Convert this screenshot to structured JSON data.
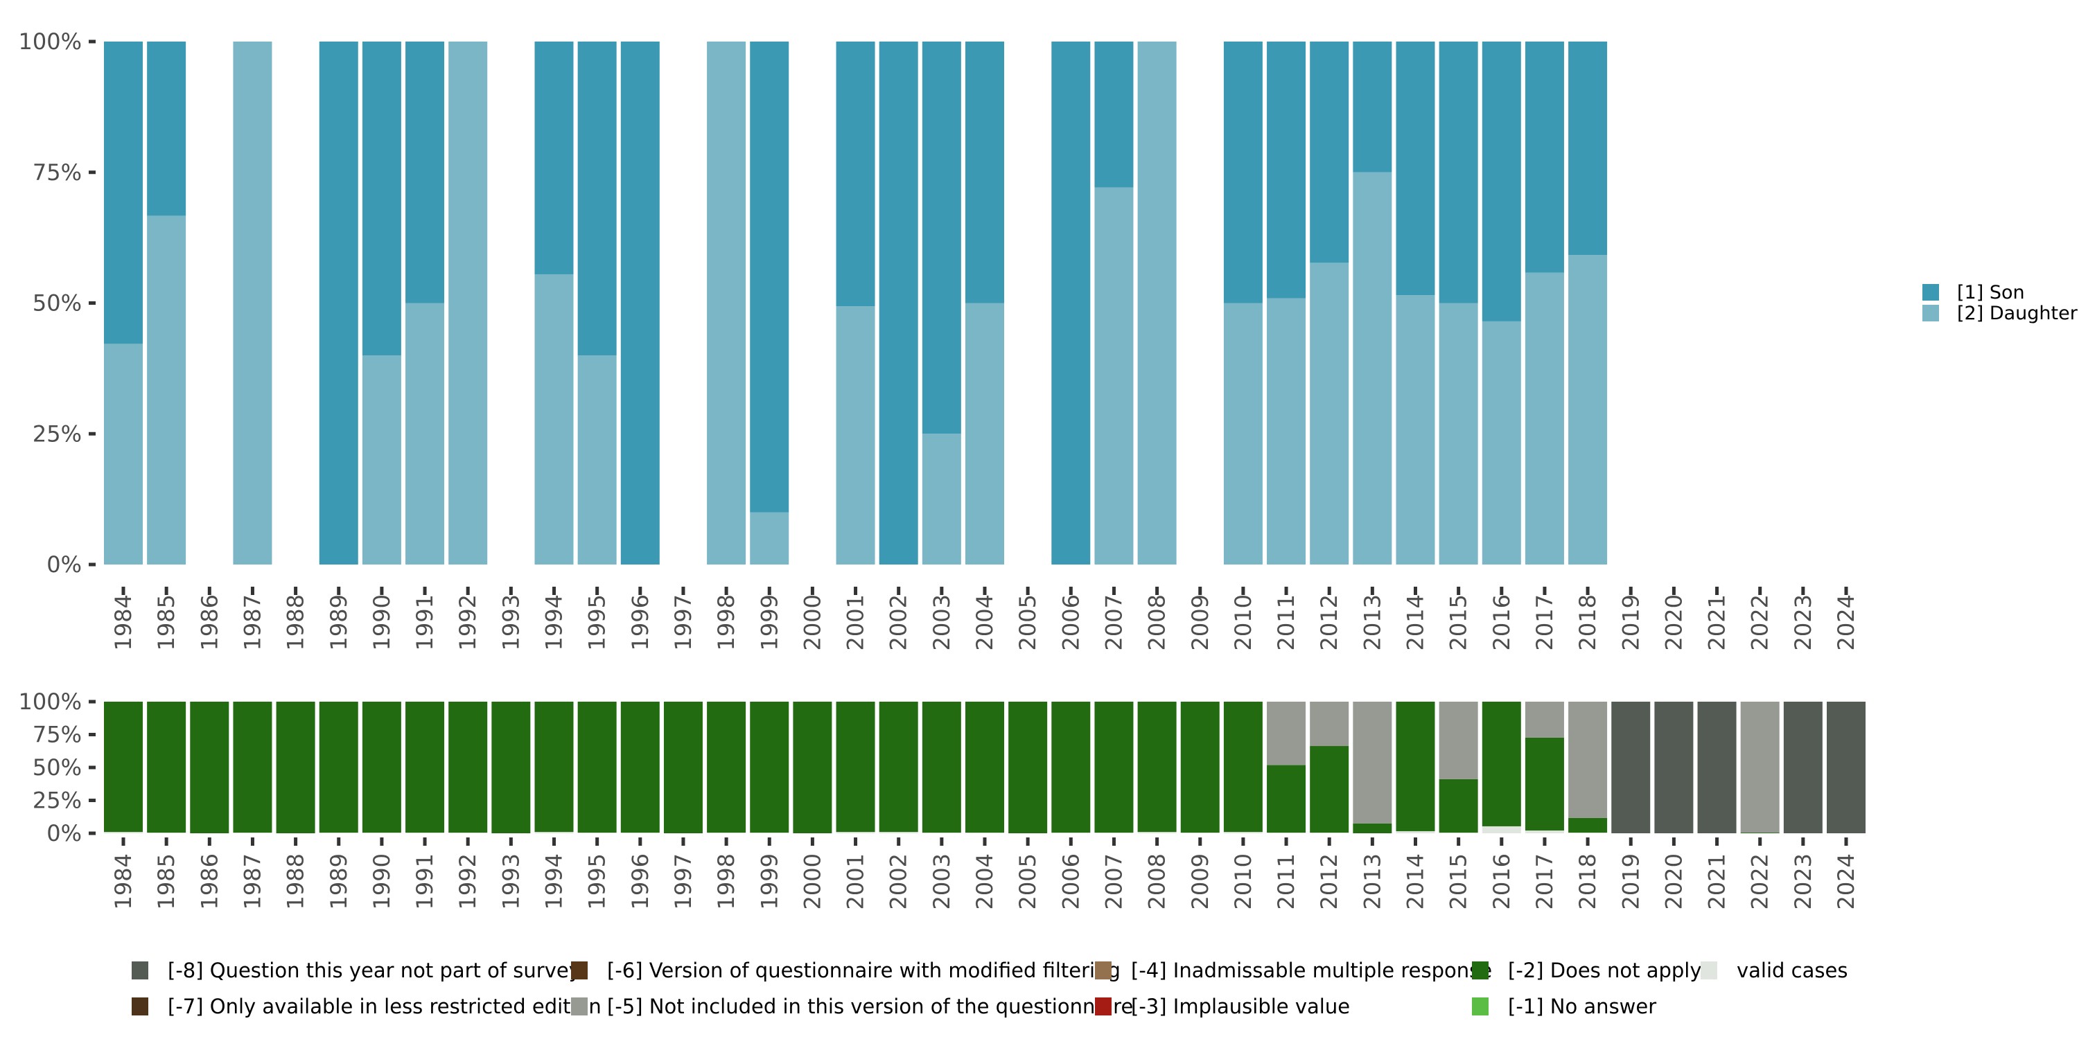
{
  "chart_data": [
    {
      "type": "bar",
      "stacked": true,
      "percent": true,
      "title": "",
      "xlabel": "",
      "ylabel": "",
      "ylim": [
        0,
        100
      ],
      "yticks": [
        "0%",
        "25%",
        "50%",
        "75%",
        "100%"
      ],
      "categories": [
        "1984",
        "1985",
        "1986",
        "1987",
        "1988",
        "1989",
        "1990",
        "1991",
        "1992",
        "1993",
        "1994",
        "1995",
        "1996",
        "1997",
        "1998",
        "1999",
        "2000",
        "2001",
        "2002",
        "2003",
        "2004",
        "2005",
        "2006",
        "2007",
        "2008",
        "2009",
        "2010",
        "2011",
        "2012",
        "2013",
        "2014",
        "2015",
        "2016",
        "2017",
        "2018",
        "2019",
        "2020",
        "2021",
        "2022",
        "2023",
        "2024"
      ],
      "legend_position": "right",
      "series": [
        {
          "name": "[2] Daughter",
          "color": "#7AB6C5",
          "values": [
            42.2,
            66.7,
            null,
            100,
            null,
            0,
            40,
            50,
            100,
            null,
            55.5,
            40,
            0,
            null,
            100,
            10,
            null,
            49.4,
            0,
            25,
            50,
            null,
            0,
            72.1,
            100,
            null,
            50,
            50.9,
            57.7,
            75,
            51.5,
            50,
            46.5,
            55.8,
            59.2,
            null,
            null,
            null,
            null,
            null,
            null
          ]
        },
        {
          "name": "[1] Son",
          "color": "#3C99B3",
          "values": [
            57.8,
            33.3,
            null,
            0,
            null,
            100,
            60,
            50,
            0,
            null,
            44.5,
            60,
            100,
            null,
            0,
            90,
            null,
            50.6,
            100,
            75,
            50,
            null,
            100,
            27.9,
            0,
            null,
            50,
            49.1,
            42.3,
            25,
            48.5,
            50,
            53.5,
            44.2,
            40.8,
            null,
            null,
            null,
            null,
            null,
            null
          ]
        }
      ]
    },
    {
      "type": "bar",
      "stacked": true,
      "percent": true,
      "title": "",
      "xlabel": "",
      "ylabel": "",
      "ylim": [
        0,
        100
      ],
      "yticks": [
        "0%",
        "25%",
        "50%",
        "75%",
        "100%"
      ],
      "categories": [
        "1984",
        "1985",
        "1986",
        "1987",
        "1988",
        "1989",
        "1990",
        "1991",
        "1992",
        "1993",
        "1994",
        "1995",
        "1996",
        "1997",
        "1998",
        "1999",
        "2000",
        "2001",
        "2002",
        "2003",
        "2004",
        "2005",
        "2006",
        "2007",
        "2008",
        "2009",
        "2010",
        "2011",
        "2012",
        "2013",
        "2014",
        "2015",
        "2016",
        "2017",
        "2018",
        "2019",
        "2020",
        "2021",
        "2022",
        "2023",
        "2024"
      ],
      "legend_position": "bottom",
      "series": [
        {
          "name": "valid cases",
          "color": "#E1E5E0",
          "values": [
            1,
            0.5,
            0,
            0.5,
            0,
            0.5,
            0.5,
            0.5,
            0.5,
            0,
            1,
            0.5,
            0.5,
            0,
            0.5,
            0.5,
            0,
            1,
            1,
            0.5,
            0.5,
            0,
            0.5,
            0.5,
            1,
            0.5,
            1,
            0.5,
            0.5,
            0,
            1.6,
            0.5,
            5.3,
            2.1,
            0.5,
            0,
            0,
            0,
            0,
            0,
            0
          ]
        },
        {
          "name": "[-1] No answer",
          "color": "#5BBD44",
          "values": [
            0,
            0,
            0,
            0,
            0,
            0,
            0,
            0,
            0,
            0,
            0,
            0,
            0,
            0,
            0,
            0,
            0,
            0,
            0,
            0,
            0,
            0,
            0,
            0,
            0,
            0,
            0,
            0,
            0,
            0,
            0,
            0,
            0,
            0,
            0,
            0,
            0,
            0,
            0,
            0,
            0
          ]
        },
        {
          "name": "[-2] Does not apply",
          "color": "#236B10",
          "values": [
            99,
            99.5,
            100,
            99.5,
            100,
            99.5,
            99.5,
            99.5,
            99.5,
            100,
            99,
            99.5,
            99.5,
            100,
            99.5,
            99.5,
            100,
            99,
            99,
            99.5,
            99.5,
            100,
            99.5,
            99.5,
            99,
            99.5,
            99,
            51.3,
            65.8,
            7.5,
            98.4,
            40.6,
            94.7,
            70.6,
            11.2,
            0,
            0,
            0,
            0.5,
            0,
            0
          ]
        },
        {
          "name": "[-3] Implausible value",
          "color": "#A51C15",
          "values": [
            0,
            0,
            0,
            0,
            0,
            0,
            0,
            0,
            0,
            0,
            0,
            0,
            0,
            0,
            0,
            0,
            0,
            0,
            0,
            0,
            0,
            0,
            0,
            0,
            0,
            0,
            0,
            0,
            0,
            0,
            0,
            0,
            0,
            0,
            0,
            0,
            0,
            0,
            0,
            0,
            0
          ]
        },
        {
          "name": "[-4] Inadmissable multiple response",
          "color": "#94714E",
          "values": [
            0,
            0,
            0,
            0,
            0,
            0,
            0,
            0,
            0,
            0,
            0,
            0,
            0,
            0,
            0,
            0,
            0,
            0,
            0,
            0,
            0,
            0,
            0,
            0,
            0,
            0,
            0,
            0,
            0,
            0,
            0,
            0,
            0,
            0,
            0,
            0,
            0,
            0,
            0,
            0,
            0
          ]
        },
        {
          "name": "[-5] Not included in this version of the questionnaire",
          "color": "#969A93",
          "values": [
            0,
            0,
            0,
            0,
            0,
            0,
            0,
            0,
            0,
            0,
            0,
            0,
            0,
            0,
            0,
            0,
            0,
            0,
            0,
            0,
            0,
            0,
            0,
            0,
            0,
            0,
            0,
            48.2,
            33.7,
            92.5,
            0,
            58.9,
            0,
            27.3,
            88.3,
            0,
            0,
            0,
            99.5,
            0,
            0
          ]
        },
        {
          "name": "[-6] Version of questionnaire with modified filtering",
          "color": "#583719",
          "values": [
            0,
            0,
            0,
            0,
            0,
            0,
            0,
            0,
            0,
            0,
            0,
            0,
            0,
            0,
            0,
            0,
            0,
            0,
            0,
            0,
            0,
            0,
            0,
            0,
            0,
            0,
            0,
            0,
            0,
            0,
            0,
            0,
            0,
            0,
            0,
            0,
            0,
            0,
            0,
            0,
            0
          ]
        },
        {
          "name": "[-7] Only available in less restricted edition",
          "color": "#4C3319",
          "values": [
            0,
            0,
            0,
            0,
            0,
            0,
            0,
            0,
            0,
            0,
            0,
            0,
            0,
            0,
            0,
            0,
            0,
            0,
            0,
            0,
            0,
            0,
            0,
            0,
            0,
            0,
            0,
            0,
            0,
            0,
            0,
            0,
            0,
            0,
            0,
            0,
            0,
            0,
            0,
            0,
            0
          ]
        },
        {
          "name": "[-8] Question this year not part of survey",
          "color": "#545A54",
          "values": [
            0,
            0,
            0,
            0,
            0,
            0,
            0,
            0,
            0,
            0,
            0,
            0,
            0,
            0,
            0,
            0,
            0,
            0,
            0,
            0,
            0,
            0,
            0,
            0,
            0,
            0,
            0,
            0,
            0,
            0,
            0,
            0,
            0,
            0,
            0,
            100,
            100,
            100,
            0,
            100,
            100
          ]
        }
      ]
    }
  ],
  "legend_top": [
    {
      "label": "[1] Son",
      "color": "#3C99B3"
    },
    {
      "label": "[2] Daughter",
      "color": "#7AB6C5"
    }
  ],
  "legend_bottom": [
    {
      "label": "[-8] Question this year not part of survey",
      "color": "#545A54"
    },
    {
      "label": "[-7] Only available in less restricted edition",
      "color": "#4C3319"
    },
    {
      "label": "[-6] Version of questionnaire with modified filtering",
      "color": "#583719"
    },
    {
      "label": "[-5] Not included in this version of the questionnaire",
      "color": "#969A93"
    },
    {
      "label": "[-4] Inadmissable multiple response",
      "color": "#94714E"
    },
    {
      "label": "[-3] Implausible value",
      "color": "#A51C15"
    },
    {
      "label": "[-2] Does not apply",
      "color": "#236B10"
    },
    {
      "label": "[-1] No answer",
      "color": "#5BBD44"
    },
    {
      "label": "valid cases",
      "color": "#E1E5E0"
    }
  ]
}
